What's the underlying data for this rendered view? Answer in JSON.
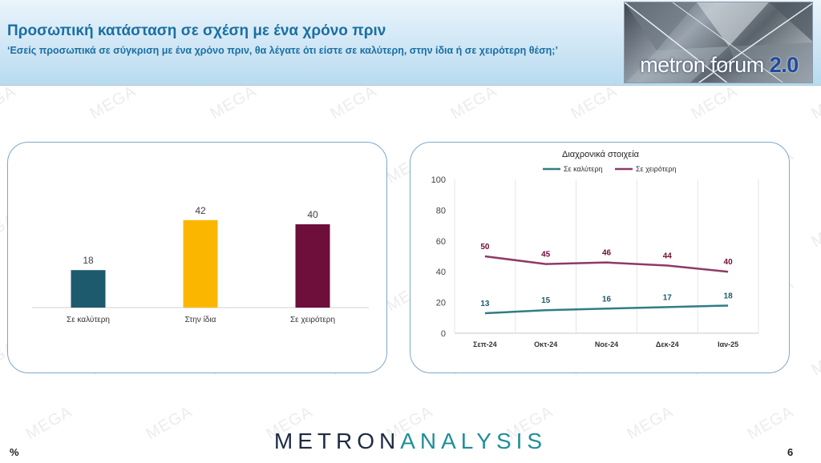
{
  "header": {
    "title": "Προσωπική κατάσταση σε σχέση με ένα χρόνο πριν",
    "subtitle": "‘Εσείς προσωπικά σε σύγκριση με ένα χρόνο πριν, θα λέγατε ότι είστε σε καλύτερη, στην ίδια ή σε χειρότερη θέση;’"
  },
  "logo": {
    "text_main": "metron forum ",
    "text_version": "2.0"
  },
  "watermark": "MEGA",
  "footer": {
    "brand_left": "METRON",
    "brand_right": "ANALYSIS",
    "unit": "%",
    "page": "6"
  },
  "colors": {
    "teal": "#1d5a6e",
    "gold": "#fbb700",
    "maroon": "#6e0e3a",
    "line_teal": "#2f7d86",
    "line_maroon": "#8e3a66"
  },
  "chart_data": [
    {
      "type": "bar",
      "categories": [
        "Σε καλύτερη",
        "Στην ίδια",
        "Σε χειρότερη"
      ],
      "values": [
        18,
        42,
        40
      ],
      "ylim": [
        0,
        50
      ]
    },
    {
      "type": "line",
      "title": "Διαχρονικά στοιχεία",
      "x": [
        "Σεπ-24",
        "Οκτ-24",
        "Νοε-24",
        "Δεκ-24",
        "Ιαν-25"
      ],
      "series": [
        {
          "name": "Σε καλύτερη",
          "values": [
            13,
            15,
            16,
            17,
            18
          ]
        },
        {
          "name": "Σε χειρότερη",
          "values": [
            50,
            45,
            46,
            44,
            40
          ]
        }
      ],
      "ylim": [
        0,
        100
      ],
      "yticks": [
        0,
        20,
        40,
        60,
        80,
        100
      ],
      "legend": "top",
      "grid": "vertical"
    }
  ]
}
